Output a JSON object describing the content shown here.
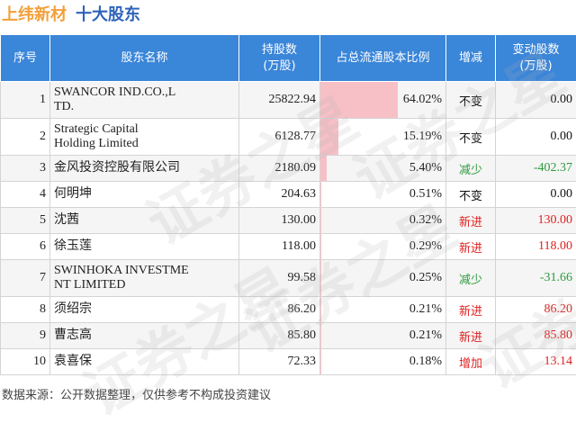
{
  "header": {
    "company": "上纬新材",
    "subtitle": "十大股东"
  },
  "watermark": "证券之星",
  "table": {
    "columns": [
      "序号",
      "股东名称",
      "持股数\n(万股)",
      "占总流通股本比例",
      "增减",
      "变动股数\n(万股)"
    ],
    "rows": [
      {
        "rank": "1",
        "name": "SWANCOR IND.CO.,L\nTD.",
        "shares": "25822.94",
        "ratio": "64.02%",
        "ratio_value": 64.02,
        "change_type": "不变",
        "change_kind": "same",
        "change": "0.00"
      },
      {
        "rank": "2",
        "name": "Strategic Capital\nHolding Limited",
        "shares": "6128.77",
        "ratio": "15.19%",
        "ratio_value": 15.19,
        "change_type": "不变",
        "change_kind": "same",
        "change": "0.00"
      },
      {
        "rank": "3",
        "name": "金风投资控股有限公司",
        "shares": "2180.09",
        "ratio": "5.40%",
        "ratio_value": 5.4,
        "change_type": "减少",
        "change_kind": "down",
        "change": "-402.37"
      },
      {
        "rank": "4",
        "name": "何明坤",
        "shares": "204.63",
        "ratio": "0.51%",
        "ratio_value": 0.51,
        "change_type": "不变",
        "change_kind": "same",
        "change": "0.00"
      },
      {
        "rank": "5",
        "name": "沈茜",
        "shares": "130.00",
        "ratio": "0.32%",
        "ratio_value": 0.32,
        "change_type": "新进",
        "change_kind": "up",
        "change": "130.00"
      },
      {
        "rank": "6",
        "name": "徐玉莲",
        "shares": "118.00",
        "ratio": "0.29%",
        "ratio_value": 0.29,
        "change_type": "新进",
        "change_kind": "up",
        "change": "118.00"
      },
      {
        "rank": "7",
        "name": "SWINHOKA INVESTME\nNT LIMITED",
        "shares": "99.58",
        "ratio": "0.25%",
        "ratio_value": 0.25,
        "change_type": "减少",
        "change_kind": "down",
        "change": "-31.66"
      },
      {
        "rank": "8",
        "name": "须绍宗",
        "shares": "86.20",
        "ratio": "0.21%",
        "ratio_value": 0.21,
        "change_type": "新进",
        "change_kind": "up",
        "change": "86.20"
      },
      {
        "rank": "9",
        "name": "曹志高",
        "shares": "85.80",
        "ratio": "0.21%",
        "ratio_value": 0.21,
        "change_type": "新进",
        "change_kind": "up",
        "change": "85.80"
      },
      {
        "rank": "10",
        "name": "袁喜保",
        "shares": "72.33",
        "ratio": "0.18%",
        "ratio_value": 0.18,
        "change_type": "增加",
        "change_kind": "up",
        "change": "13.14"
      }
    ]
  },
  "colors": {
    "header_bg": "#3a86d9",
    "company": "#f2a03a",
    "subtitle": "#2d64b8",
    "bar": "#f7c0c6",
    "up": "#e02020",
    "down": "#2e9b3e"
  },
  "footer": "数据来源：公开数据整理，仅供参考不构成投资建议"
}
